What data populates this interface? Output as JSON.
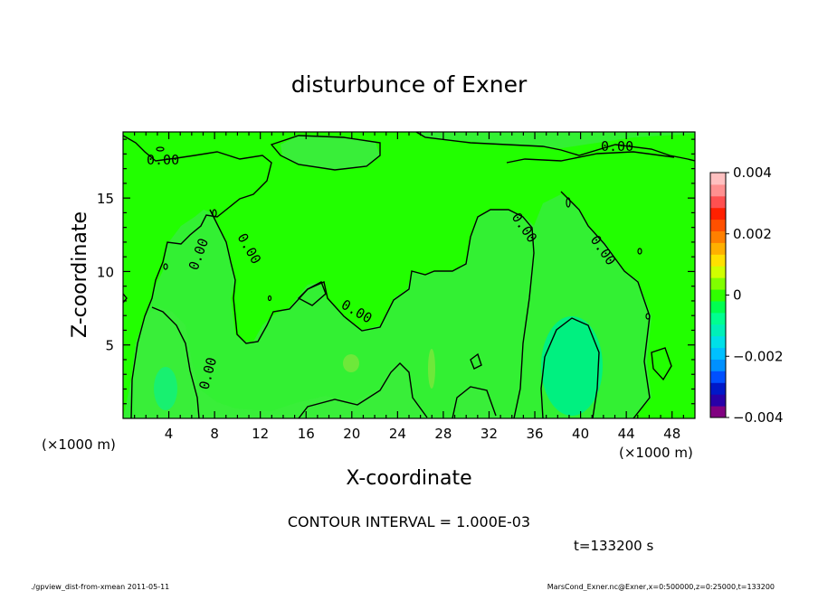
{
  "chart_data": {
    "type": "contour",
    "title": "disturbunce of Exner",
    "xlabel": "X-coordinate",
    "ylabel": "Z-coordinate",
    "x_unit_left": "(×1000 m)",
    "x_unit_right": "(×1000 m)",
    "xlim": [
      0,
      50
    ],
    "ylim": [
      0,
      19.5
    ],
    "xticks": [
      4,
      8,
      12,
      16,
      20,
      24,
      28,
      32,
      36,
      40,
      44,
      48
    ],
    "yticks": [
      5,
      10,
      15
    ],
    "contour_interval_text": "CONTOUR INTERVAL = 1.000E-03",
    "time_text": "t=133200 s",
    "contour_labels": [
      "0.00",
      "0.00",
      "0.00",
      "0.00",
      "0.00",
      "0.00",
      "0.00",
      "0.00",
      "0.00"
    ],
    "colorbar": {
      "ticks": [
        "0.004",
        "0.002",
        "0",
        "−0.002",
        "−0.004"
      ],
      "tick_values": [
        0.004,
        0.002,
        0,
        -0.002,
        -0.004
      ],
      "min": -0.004,
      "max": 0.004,
      "colors": [
        "#800080",
        "#2800a8",
        "#0018c8",
        "#0050ff",
        "#0090ff",
        "#00c0ff",
        "#00e0e8",
        "#00f0b8",
        "#00ff90",
        "#00ff50",
        "#30ff00",
        "#80ff00",
        "#d0ff00",
        "#ffe000",
        "#ffb000",
        "#ff8000",
        "#ff5000",
        "#ff2000",
        "#ff5050",
        "#ff9090",
        "#ffc0c0"
      ]
    },
    "fill_colors": {
      "background": "#33f033",
      "positive": "#22ff00",
      "negative": "#00f080",
      "weak_positive": "#7af03a"
    }
  },
  "footer": {
    "left": "./gpview_dist-from-xmean 2011-05-11",
    "right": "MarsCond_Exner.nc@Exner,x=0:500000,z=0:25000,t=133200"
  }
}
